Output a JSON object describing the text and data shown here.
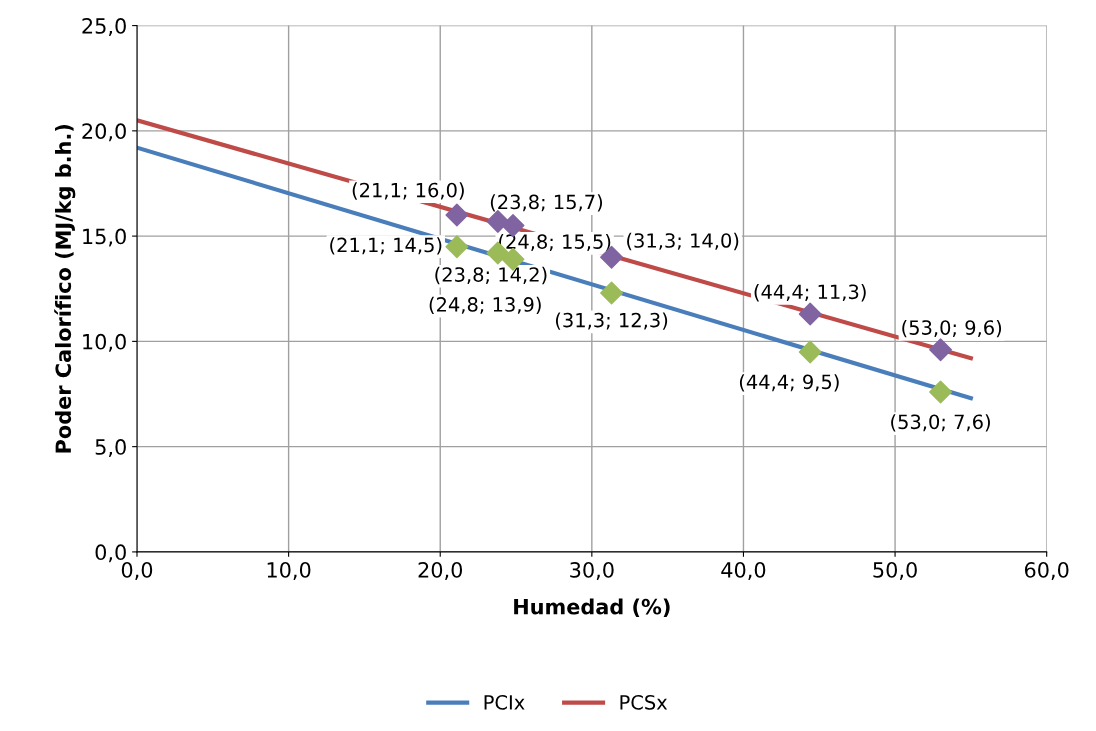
{
  "chart_data": {
    "type": "scatter",
    "xlabel": "Humedad (%)",
    "ylabel": "Poder Calorífico (MJ/kg b.h.)",
    "xlim": [
      0,
      60
    ],
    "ylim": [
      0,
      25
    ],
    "xticks": [
      {
        "value": 0,
        "label": "0,0"
      },
      {
        "value": 10,
        "label": "10,0"
      },
      {
        "value": 20,
        "label": "20,0"
      },
      {
        "value": 30,
        "label": "30,0"
      },
      {
        "value": 40,
        "label": "40,0"
      },
      {
        "value": 50,
        "label": "50,0"
      },
      {
        "value": 60,
        "label": "60,0"
      }
    ],
    "yticks": [
      {
        "value": 0,
        "label": "0,0"
      },
      {
        "value": 5,
        "label": "5,0"
      },
      {
        "value": 10,
        "label": "10,0"
      },
      {
        "value": 15,
        "label": "15,0"
      },
      {
        "value": 20,
        "label": "20,0"
      },
      {
        "value": 25,
        "label": "25,0"
      }
    ],
    "grid": true,
    "legend": "bottom",
    "series": [
      {
        "name": "PCIx",
        "type": "line",
        "color": "#4a7ebb",
        "marker": "none",
        "x": [
          0,
          55
        ],
        "values": [
          19.2,
          7.3
        ]
      },
      {
        "name": "PCSx",
        "type": "line",
        "color": "#be4b48",
        "marker": "none",
        "x": [
          0,
          55
        ],
        "values": [
          20.5,
          9.2
        ]
      },
      {
        "color": "#8064a2",
        "marker": "diamond",
        "x": [
          21.1,
          23.8,
          24.8,
          31.3,
          44.4,
          53.0
        ],
        "values": [
          16.0,
          15.7,
          15.5,
          14.0,
          11.3,
          9.6
        ],
        "value_labels": [
          "(21,1; 16,0)",
          "(23,8; 15,7)",
          "(24,8; 15,5)",
          "(31,3; 14,0)",
          "(44,4; 11,3)",
          "(53,0; 9,6)"
        ]
      },
      {
        "color": "#9bbb59",
        "marker": "diamond",
        "x": [
          21.1,
          23.8,
          24.8,
          31.3,
          44.4,
          53.0
        ],
        "values": [
          14.5,
          14.2,
          13.9,
          12.3,
          9.5,
          7.6
        ],
        "value_labels": [
          "(21,1; 14,5)",
          "(23,8; 14,2)",
          "(24,8; 13,9)",
          "(31,3; 12,3)",
          "(44,4; 9,5)",
          "(53,0; 7,6)"
        ]
      }
    ]
  }
}
